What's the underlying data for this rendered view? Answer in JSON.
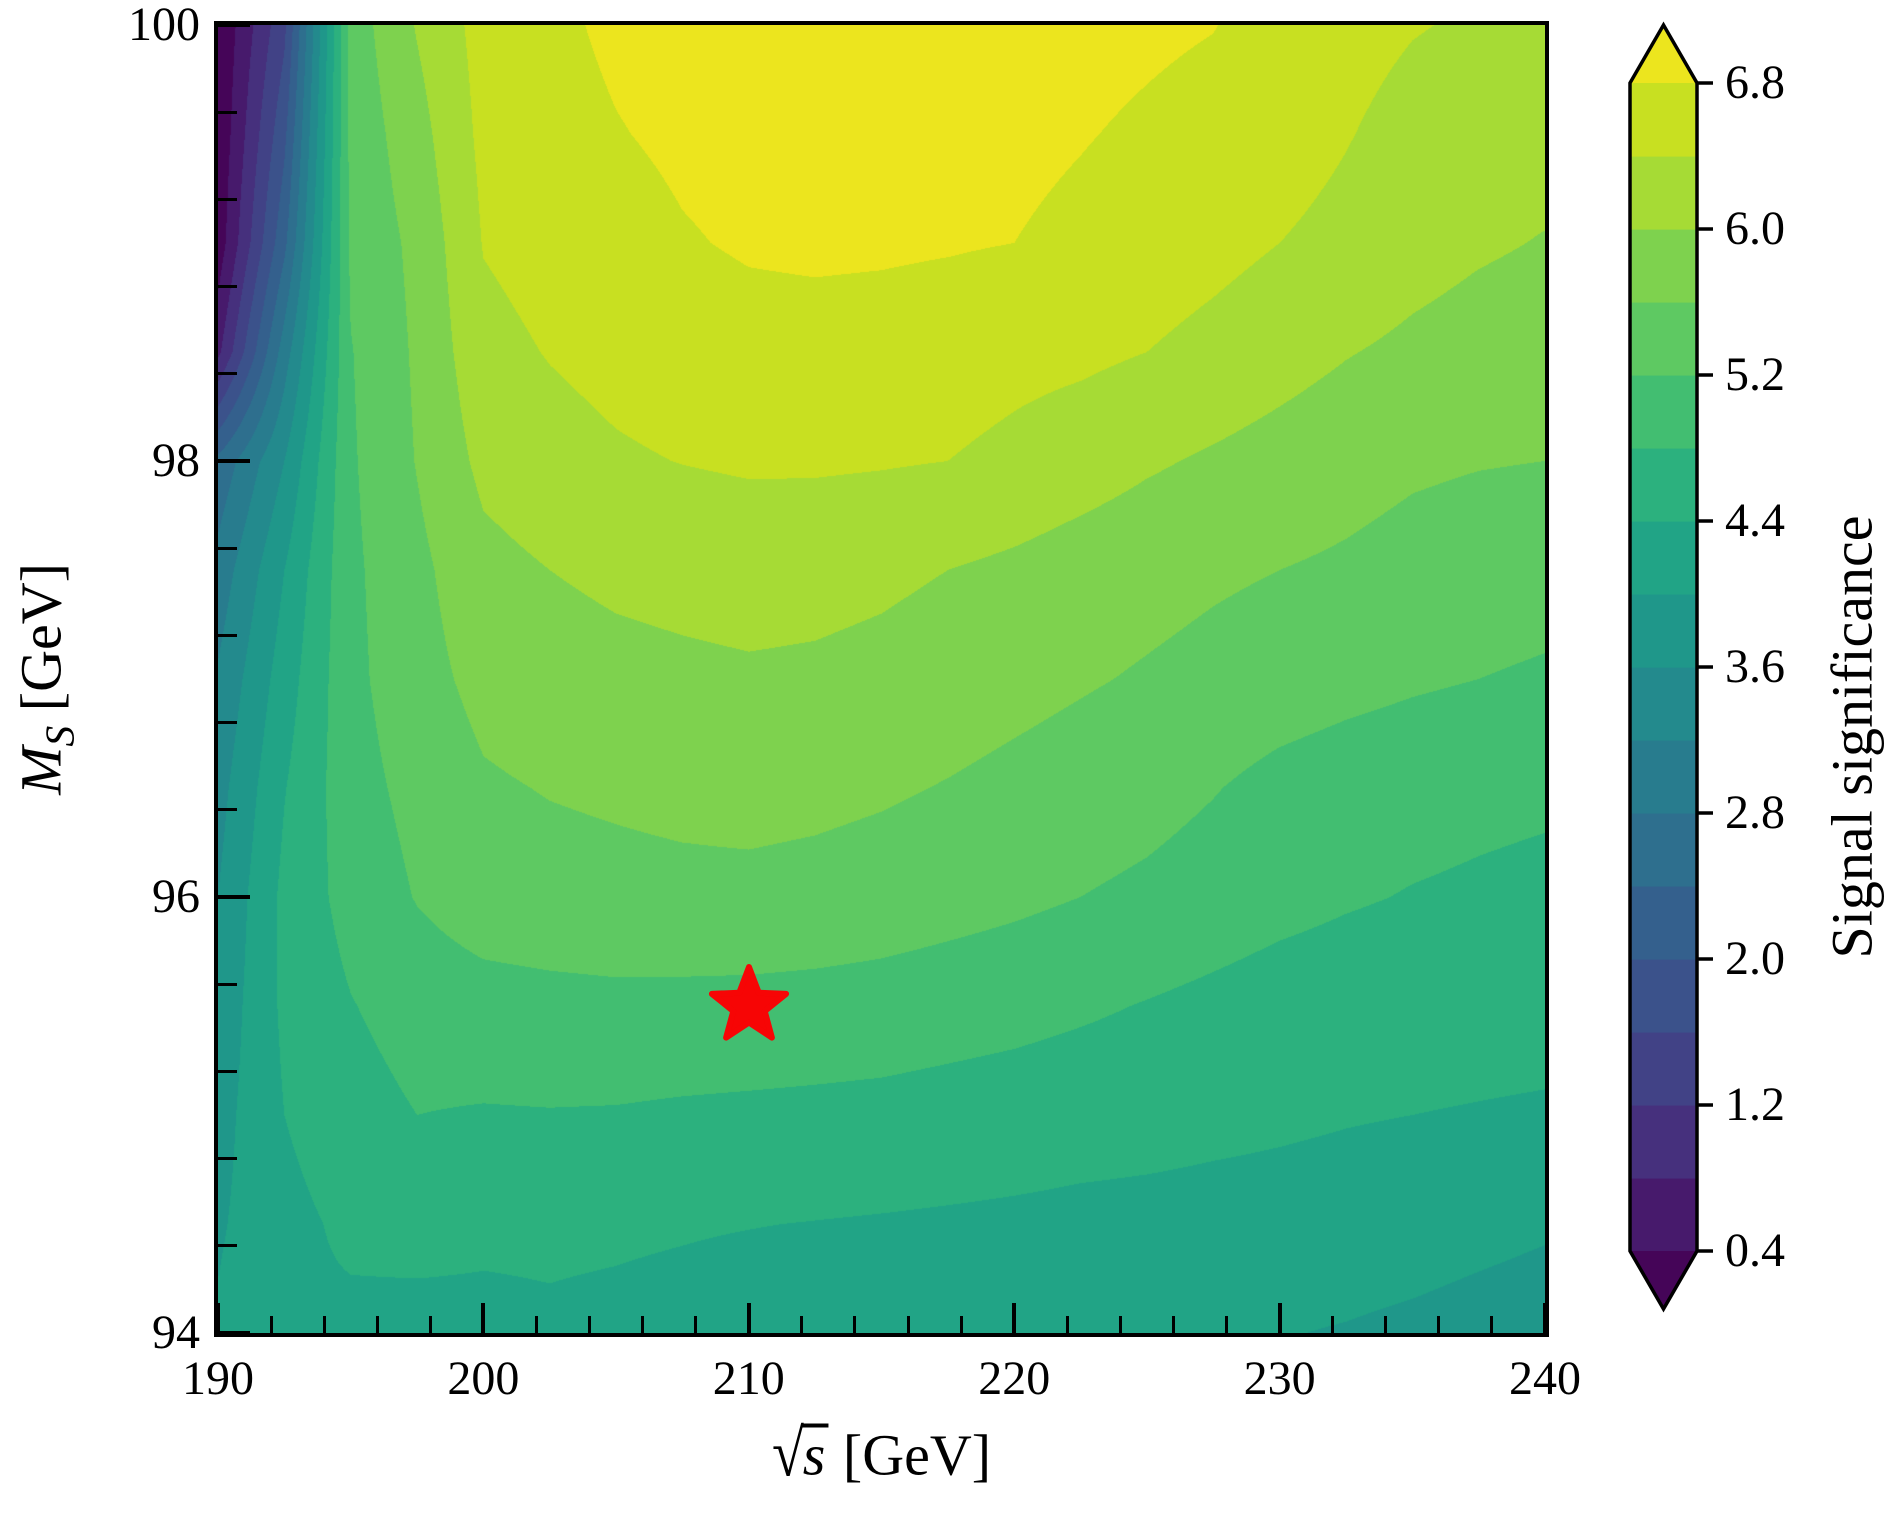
{
  "chart_data": {
    "type": "heatmap",
    "subtype": "filled_contour",
    "title": "",
    "xlabel": "√s [GeV]",
    "ylabel": "M_S [GeV]",
    "xlabel_parts": {
      "radical": "√",
      "variable": "s",
      "unit": "[GeV]"
    },
    "ylabel_parts": {
      "variable": "M",
      "subscript": "S",
      "unit": "[GeV]"
    },
    "xlim": [
      190,
      240
    ],
    "ylim": [
      94,
      100
    ],
    "x_major_ticks": [
      190,
      200,
      210,
      220,
      230,
      240
    ],
    "x_major_tick_labels": [
      "190",
      "200",
      "210",
      "220",
      "230",
      "240"
    ],
    "x_minor_tick_step": 2,
    "y_major_ticks": [
      94,
      96,
      98,
      100
    ],
    "y_major_tick_labels": [
      "94",
      "96",
      "98",
      "100"
    ],
    "y_minor_tick_step": 0.4,
    "grid_lines": "off",
    "colormap": "viridis",
    "colormap_anchors": [
      "#440154",
      "#46085c",
      "#482374",
      "#453480",
      "#414487",
      "#3b528b",
      "#355f8d",
      "#2f6c8e",
      "#2a788e",
      "#25848e",
      "#21918c",
      "#1e9c89",
      "#22a884",
      "#2fb47c",
      "#44bf70",
      "#5ec962",
      "#7ad151",
      "#a0da39",
      "#bddf26",
      "#dfe318",
      "#fde725"
    ],
    "contour_levels": {
      "min": 0.4,
      "step": 0.4,
      "max": 6.8,
      "extend": "both"
    },
    "colorbar": {
      "label": "Signal significance",
      "tick_values": [
        0.4,
        1.2,
        2.0,
        2.8,
        3.6,
        4.4,
        5.2,
        6.0,
        6.8
      ],
      "tick_labels": [
        "0.4",
        "1.2",
        "2.0",
        "2.8",
        "3.6",
        "4.4",
        "5.2",
        "6.0",
        "6.8"
      ]
    },
    "marker": {
      "x": 210,
      "y": 95.5,
      "shape": "star",
      "color": "#f70505"
    },
    "grid": {
      "x": [
        190,
        192.5,
        195,
        197.5,
        200,
        202.5,
        205,
        207.5,
        210,
        212.5,
        215,
        217.5,
        220,
        222.5,
        225,
        227.5,
        230,
        232.5,
        235,
        237.5,
        240
      ],
      "y": [
        94,
        94.5,
        95,
        95.5,
        96,
        96.5,
        97,
        97.5,
        98,
        98.5,
        99,
        99.5,
        100
      ],
      "z": [
        [
          4.05,
          4.37,
          4.32,
          4.3,
          4.32,
          4.35,
          4.32,
          4.28,
          4.22,
          4.18,
          4.15,
          4.12,
          4.1,
          4.08,
          4.06,
          4.04,
          4.02,
          3.97,
          3.9,
          3.82,
          3.75
        ],
        [
          3.95,
          4.3,
          4.47,
          4.5,
          4.46,
          4.46,
          4.45,
          4.43,
          4.41,
          4.39,
          4.37,
          4.35,
          4.33,
          4.31,
          4.3,
          4.29,
          4.28,
          4.26,
          4.22,
          4.14,
          4.06
        ],
        [
          3.85,
          4.4,
          4.63,
          4.8,
          4.77,
          4.78,
          4.77,
          4.74,
          4.72,
          4.7,
          4.68,
          4.64,
          4.6,
          4.55,
          4.52,
          4.48,
          4.45,
          4.42,
          4.4,
          4.38,
          4.36
        ],
        [
          3.72,
          4.48,
          4.78,
          4.98,
          5.05,
          5.08,
          5.1,
          5.09,
          5.08,
          5.06,
          5.03,
          4.98,
          4.93,
          4.86,
          4.78,
          4.7,
          4.62,
          4.58,
          4.55,
          4.54,
          4.53
        ],
        [
          3.6,
          4.5,
          4.95,
          5.22,
          5.4,
          5.45,
          5.48,
          5.5,
          5.5,
          5.47,
          5.42,
          5.35,
          5.28,
          5.2,
          5.12,
          5.02,
          4.92,
          4.84,
          4.78,
          4.74,
          4.7
        ],
        [
          3.45,
          4.38,
          5.05,
          5.32,
          5.55,
          5.62,
          5.66,
          5.7,
          5.73,
          5.7,
          5.65,
          5.58,
          5.5,
          5.42,
          5.34,
          5.22,
          5.08,
          5.0,
          4.95,
          4.9,
          4.87
        ],
        [
          3.25,
          4.2,
          5.1,
          5.45,
          5.72,
          5.82,
          5.88,
          5.92,
          5.95,
          5.93,
          5.88,
          5.8,
          5.72,
          5.64,
          5.56,
          5.48,
          5.4,
          5.32,
          5.25,
          5.2,
          5.15
        ],
        [
          2.95,
          4.0,
          5.12,
          5.5,
          5.88,
          6.0,
          6.08,
          6.12,
          6.15,
          6.13,
          6.08,
          6.0,
          5.92,
          5.82,
          5.74,
          5.66,
          5.6,
          5.54,
          5.46,
          5.4,
          5.36
        ],
        [
          2.5,
          3.6,
          5.15,
          5.62,
          6.1,
          6.25,
          6.35,
          6.41,
          6.45,
          6.45,
          6.43,
          6.4,
          6.3,
          6.18,
          6.05,
          5.95,
          5.85,
          5.75,
          5.66,
          5.62,
          5.6
        ],
        [
          0.7,
          3.0,
          5.18,
          5.66,
          6.28,
          6.42,
          6.52,
          6.6,
          6.66,
          6.67,
          6.65,
          6.6,
          6.52,
          6.48,
          6.4,
          6.28,
          6.15,
          6.02,
          5.92,
          5.84,
          5.8
        ],
        [
          0.15,
          2.3,
          5.28,
          5.7,
          6.42,
          6.55,
          6.65,
          6.77,
          6.84,
          6.86,
          6.85,
          6.83,
          6.8,
          6.72,
          6.62,
          6.52,
          6.4,
          6.3,
          6.15,
          6.05,
          5.98
        ],
        [
          0.05,
          1.9,
          5.32,
          5.85,
          6.5,
          6.66,
          6.78,
          6.87,
          6.92,
          6.94,
          6.93,
          6.91,
          6.88,
          6.82,
          6.75,
          6.68,
          6.55,
          6.42,
          6.28,
          6.2,
          6.15
        ],
        [
          0.0,
          1.5,
          5.38,
          6.03,
          6.55,
          6.72,
          6.87,
          6.95,
          7.0,
          7.02,
          7.0,
          6.98,
          6.95,
          6.91,
          6.86,
          6.81,
          6.68,
          6.52,
          6.42,
          6.36,
          6.32
        ]
      ]
    }
  }
}
